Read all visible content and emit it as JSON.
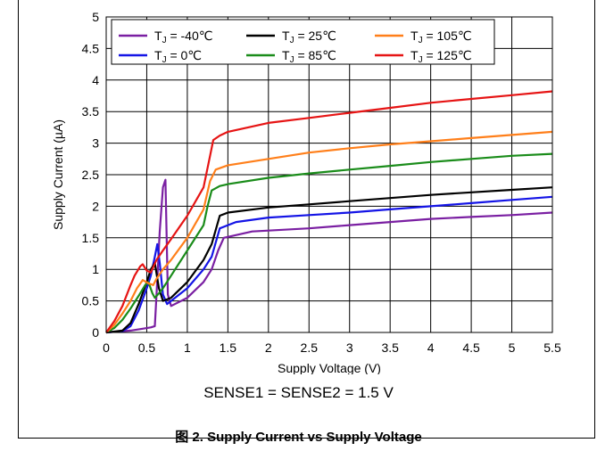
{
  "chart_data": {
    "type": "line",
    "xlabel": "Supply Voltage (V)",
    "ylabel": "Supply Current (µA)",
    "xlim": [
      0,
      5.5
    ],
    "ylim": [
      0,
      5
    ],
    "xticks": [
      "0",
      "0.5",
      "1",
      "1.5",
      "2",
      "2.5",
      "3",
      "3.5",
      "4",
      "4.5",
      "5",
      "5.5"
    ],
    "yticks": [
      "0",
      "0.5",
      "1",
      "1.5",
      "2",
      "2.5",
      "3",
      "3.5",
      "4",
      "4.5",
      "5"
    ],
    "grid": true,
    "legend_position": "top",
    "series": [
      {
        "name": "TJ = -40℃",
        "label_main": "T",
        "label_sub": "J",
        "label_rest": " = -40℃",
        "color": "#7a1fa2",
        "x": [
          0,
          0.3,
          0.45,
          0.55,
          0.6,
          0.62,
          0.66,
          0.7,
          0.73,
          0.76,
          0.8,
          1.0,
          1.2,
          1.3,
          1.38,
          1.45,
          1.8,
          2.5,
          3.0,
          3.5,
          4.0,
          4.5,
          5.0,
          5.5
        ],
        "y": [
          0,
          0.03,
          0.06,
          0.08,
          0.1,
          0.6,
          1.6,
          2.3,
          2.42,
          0.6,
          0.42,
          0.55,
          0.8,
          1.0,
          1.3,
          1.5,
          1.6,
          1.65,
          1.7,
          1.75,
          1.8,
          1.83,
          1.86,
          1.9
        ]
      },
      {
        "name": "TJ = 0℃",
        "label_main": "T",
        "label_sub": "J",
        "label_rest": " = 0℃",
        "color": "#1414e6",
        "x": [
          0,
          0.2,
          0.3,
          0.4,
          0.5,
          0.55,
          0.6,
          0.63,
          0.66,
          0.7,
          0.75,
          0.8,
          1.0,
          1.2,
          1.3,
          1.4,
          1.6,
          2.0,
          2.5,
          3.0,
          3.5,
          4.0,
          4.5,
          5.0,
          5.5
        ],
        "y": [
          0,
          0.02,
          0.1,
          0.35,
          0.7,
          0.9,
          1.2,
          1.4,
          1.1,
          0.6,
          0.45,
          0.5,
          0.7,
          1.0,
          1.2,
          1.65,
          1.75,
          1.82,
          1.86,
          1.9,
          1.95,
          2.0,
          2.05,
          2.1,
          2.15
        ]
      },
      {
        "name": "TJ = 25℃",
        "label_main": "T",
        "label_sub": "J",
        "label_rest": " = 25℃",
        "color": "#000000",
        "x": [
          0,
          0.2,
          0.3,
          0.4,
          0.5,
          0.55,
          0.6,
          0.65,
          0.7,
          0.8,
          1.0,
          1.2,
          1.3,
          1.4,
          1.5,
          2.0,
          2.5,
          3.0,
          3.5,
          4.0,
          4.5,
          5.0,
          5.5
        ],
        "y": [
          0,
          0.03,
          0.15,
          0.45,
          0.8,
          1.0,
          1.1,
          0.7,
          0.5,
          0.55,
          0.8,
          1.15,
          1.4,
          1.85,
          1.9,
          1.98,
          2.03,
          2.08,
          2.13,
          2.18,
          2.22,
          2.26,
          2.3
        ]
      },
      {
        "name": "TJ = 85℃",
        "label_main": "T",
        "label_sub": "J",
        "label_rest": " = 85℃",
        "color": "#1a8c1a",
        "x": [
          0,
          0.1,
          0.2,
          0.3,
          0.4,
          0.48,
          0.52,
          0.57,
          0.6,
          0.65,
          0.7,
          0.8,
          1.0,
          1.2,
          1.25,
          1.3,
          1.4,
          1.5,
          2.0,
          2.5,
          3.0,
          3.5,
          4.0,
          4.5,
          5.0,
          5.5
        ],
        "y": [
          0,
          0.07,
          0.2,
          0.38,
          0.58,
          0.75,
          0.8,
          0.62,
          0.55,
          0.62,
          0.7,
          0.9,
          1.3,
          1.7,
          2.0,
          2.25,
          2.32,
          2.35,
          2.45,
          2.52,
          2.58,
          2.64,
          2.7,
          2.75,
          2.8,
          2.83
        ]
      },
      {
        "name": "TJ = 105℃",
        "label_main": "T",
        "label_sub": "J",
        "label_rest": " = 105℃",
        "color": "#ff7f1a",
        "x": [
          0,
          0.1,
          0.2,
          0.3,
          0.38,
          0.45,
          0.52,
          0.58,
          0.62,
          0.7,
          0.8,
          1.0,
          1.2,
          1.28,
          1.35,
          1.5,
          2.0,
          2.5,
          3.0,
          3.5,
          4.0,
          4.5,
          5.0,
          5.5
        ],
        "y": [
          0,
          0.12,
          0.3,
          0.5,
          0.7,
          0.83,
          0.78,
          0.75,
          0.85,
          1.0,
          1.15,
          1.5,
          1.95,
          2.4,
          2.58,
          2.65,
          2.75,
          2.85,
          2.92,
          2.98,
          3.03,
          3.08,
          3.13,
          3.18
        ]
      },
      {
        "name": "TJ = 125℃",
        "label_main": "T",
        "label_sub": "J",
        "label_rest": " = 125℃",
        "color": "#e61414",
        "x": [
          0,
          0.1,
          0.2,
          0.3,
          0.35,
          0.42,
          0.45,
          0.5,
          0.55,
          0.62,
          0.7,
          0.8,
          1.0,
          1.2,
          1.28,
          1.32,
          1.4,
          1.5,
          2.0,
          2.5,
          3.0,
          3.5,
          4.0,
          4.5,
          5.0,
          5.5
        ],
        "y": [
          0,
          0.18,
          0.42,
          0.75,
          0.9,
          1.05,
          1.08,
          0.98,
          0.95,
          1.15,
          1.3,
          1.48,
          1.85,
          2.3,
          2.8,
          3.05,
          3.12,
          3.18,
          3.32,
          3.4,
          3.48,
          3.56,
          3.64,
          3.7,
          3.76,
          3.82
        ]
      }
    ]
  },
  "note": "SENSE1 = SENSE2 = 1.5 V",
  "caption": "图 2. Supply Current vs Supply Voltage"
}
